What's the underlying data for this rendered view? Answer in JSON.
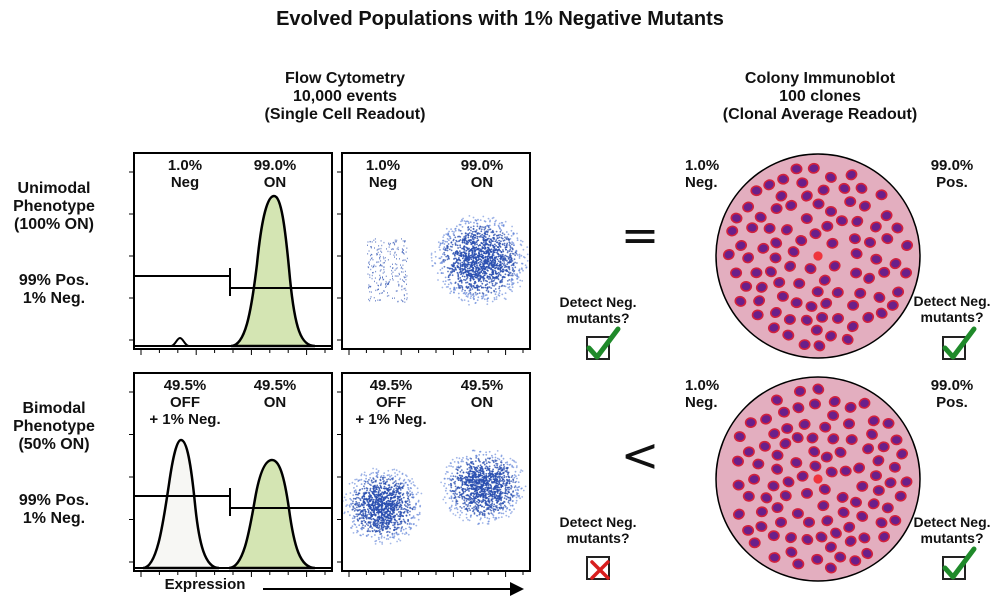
{
  "title": "Evolved Populations with 1% Negative Mutants",
  "flow": {
    "heading_line1": "Flow Cytometry",
    "heading_line2": "10,000 events",
    "heading_line3": "(Single Cell Readout)",
    "axis_label": "Expression"
  },
  "colony": {
    "heading_line1": "Colony Immunoblot",
    "heading_line2": "100 clones",
    "heading_line3": "(Clonal Average Readout)"
  },
  "rows": [
    {
      "phenotype_line1": "Unimodal",
      "phenotype_line2": "Phenotype",
      "phenotype_line3": "(100% ON)",
      "pos_label": "99% Pos.",
      "neg_label": "1% Neg.",
      "hist_left_line1": "1.0%",
      "hist_left_line2": "Neg",
      "hist_left_line3": "",
      "hist_right_line1": "99.0%",
      "hist_right_line2": "ON",
      "scatter_left_line1": "1.0%",
      "scatter_left_line2": "Neg",
      "scatter_left_line3": "",
      "scatter_right_line1": "99.0%",
      "scatter_right_line2": "ON",
      "comparison_symbol": "=",
      "flow_detect_line1": "Detect Neg.",
      "flow_detect_line2": "mutants?",
      "flow_detect_result": "check",
      "colony_neg_line1": "1.0%",
      "colony_neg_line2": "Neg.",
      "colony_pos_line1": "99.0%",
      "colony_pos_line2": "Pos.",
      "colony_detect_line1": "Detect Neg.",
      "colony_detect_line2": "mutants?",
      "colony_detect_result": "check"
    },
    {
      "phenotype_line1": "Bimodal",
      "phenotype_line2": "Phenotype",
      "phenotype_line3": "(50% ON)",
      "pos_label": "99% Pos.",
      "neg_label": "1% Neg.",
      "hist_left_line1": "49.5%",
      "hist_left_line2": "OFF",
      "hist_left_line3": "+ 1% Neg.",
      "hist_right_line1": "49.5%",
      "hist_right_line2": "ON",
      "scatter_left_line1": "49.5%",
      "scatter_left_line2": "OFF",
      "scatter_left_line3": "+ 1% Neg.",
      "scatter_right_line1": "49.5%",
      "scatter_right_line2": "ON",
      "comparison_symbol": "<",
      "flow_detect_line1": "Detect Neg.",
      "flow_detect_line2": "mutants?",
      "flow_detect_result": "cross",
      "colony_neg_line1": "1.0%",
      "colony_neg_line2": "Neg.",
      "colony_pos_line1": "99.0%",
      "colony_pos_line2": "Pos.",
      "colony_detect_line1": "Detect Neg.",
      "colony_detect_line2": "mutants?",
      "colony_detect_result": "check"
    }
  ],
  "colors": {
    "on_fill": "#d4e5b3",
    "off_fill": "#f7f7f4",
    "dot_color": "#2a4fb0",
    "plate_fill": "#e3aebf",
    "colony_fill": "#6a1f8a",
    "colony_ring": "#d2213c",
    "mutant_colony": "#f0272f",
    "check_color": "#1f8a2a",
    "cross_color": "#d81e1e"
  }
}
